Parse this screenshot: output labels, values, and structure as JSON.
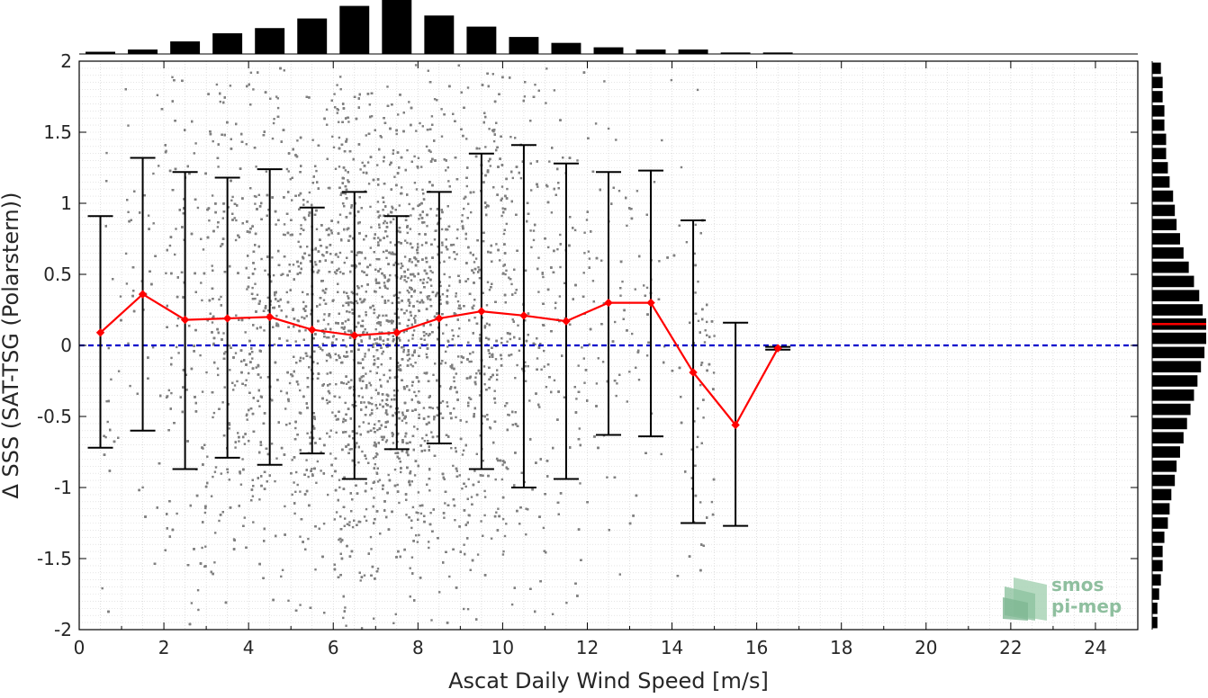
{
  "chart_data": {
    "type": "scatter",
    "xlabel": "Ascat Daily Wind Speed [m/s]",
    "ylabel": "Δ SSS (SAT-TSG (Polarstern))",
    "xlim": [
      0,
      25
    ],
    "ylim": [
      -2,
      2
    ],
    "x_ticks": [
      "0",
      "2",
      "4",
      "6",
      "8",
      "10",
      "12",
      "14",
      "16",
      "18",
      "20",
      "22",
      "24"
    ],
    "y_ticks": [
      "-2",
      "-1.5",
      "-1",
      "-0.5",
      "0",
      "0.5",
      "1",
      "1.5",
      "2"
    ],
    "grid": true,
    "scatter_color": "#808080",
    "scatter_extent": {
      "x_min": 0.5,
      "x_max": 15.0
    },
    "mean_curve": {
      "color": "#ff0000",
      "x": [
        0.5,
        1.5,
        2.5,
        3.5,
        4.5,
        5.5,
        6.5,
        7.5,
        8.5,
        9.5,
        10.5,
        11.5,
        12.5,
        13.5,
        14.5,
        15.5,
        16.5
      ],
      "y": [
        0.09,
        0.36,
        0.18,
        0.19,
        0.2,
        0.11,
        0.07,
        0.09,
        0.19,
        0.24,
        0.21,
        0.17,
        0.3,
        0.3,
        -0.19,
        -0.56,
        -0.02
      ],
      "err_low": [
        -0.72,
        -0.6,
        -0.87,
        -0.79,
        -0.84,
        -0.76,
        -0.94,
        -0.73,
        -0.69,
        -0.87,
        -1.0,
        -0.94,
        -0.63,
        -0.64,
        -1.25,
        -1.27,
        -0.03
      ],
      "err_high": [
        0.91,
        1.32,
        1.22,
        1.18,
        1.24,
        0.97,
        1.08,
        0.91,
        1.08,
        1.35,
        1.41,
        1.28,
        1.22,
        1.23,
        0.88,
        0.16,
        -0.01
      ]
    },
    "reference_line": {
      "y": 0,
      "color": "#0000cc",
      "style": "dashed"
    },
    "top_histogram": {
      "bin_centers": [
        0.5,
        1.5,
        2.5,
        3.5,
        4.5,
        5.5,
        6.5,
        7.5,
        8.5,
        9.5,
        10.5,
        11.5,
        12.5,
        13.5,
        14.5,
        15.5,
        16.5
      ],
      "counts": [
        3,
        6,
        17,
        28,
        35,
        48,
        65,
        73,
        52,
        37,
        23,
        15,
        9,
        6,
        6,
        2,
        2
      ]
    },
    "right_histogram": {
      "bin_centers": [
        -1.95,
        -1.85,
        -1.75,
        -1.65,
        -1.55,
        -1.45,
        -1.35,
        -1.25,
        -1.15,
        -1.05,
        -0.95,
        -0.85,
        -0.75,
        -0.65,
        -0.55,
        -0.45,
        -0.35,
        -0.25,
        -0.15,
        -0.05,
        0.05,
        0.15,
        0.25,
        0.35,
        0.45,
        0.55,
        0.65,
        0.75,
        0.85,
        0.95,
        1.05,
        1.15,
        1.25,
        1.35,
        1.45,
        1.55,
        1.65,
        1.75,
        1.85,
        1.95
      ],
      "counts": [
        3,
        3,
        4,
        5,
        6,
        6,
        7,
        9,
        10,
        11,
        13,
        14,
        16,
        18,
        20,
        22,
        24,
        26,
        28,
        30,
        31,
        31,
        29,
        27,
        24,
        21,
        18,
        16,
        14,
        13,
        12,
        10,
        9,
        8,
        8,
        7,
        7,
        6,
        6,
        5
      ],
      "mean_marker": 0.15,
      "mean_marker_color": "#ff0000"
    }
  },
  "logo": {
    "line1": "smos",
    "line2": "pi-mep",
    "color": "#8fbf9f"
  }
}
